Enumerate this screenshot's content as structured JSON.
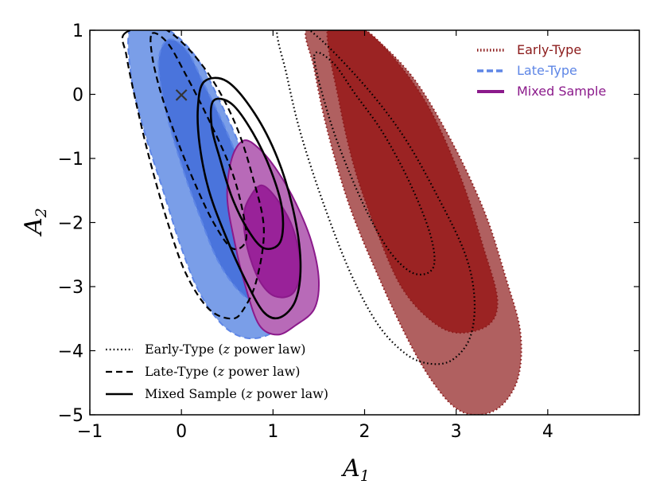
{
  "chart_data": {
    "type": "contour",
    "title": "",
    "xlabel": "A",
    "xlabel_sub": "1",
    "ylabel": "A",
    "ylabel_sub": "2",
    "xlim": [
      -1,
      5
    ],
    "ylim": [
      -5,
      1
    ],
    "xticks": [
      -1,
      0,
      1,
      2,
      3,
      4
    ],
    "yticks": [
      1,
      0,
      -1,
      -2,
      -3,
      -4,
      -5
    ],
    "xtick_labels": [
      "−1",
      "0",
      "1",
      "2",
      "3",
      "4"
    ],
    "ytick_labels": [
      "1",
      "0",
      "−1",
      "−2",
      "−3",
      "−4",
      "−5"
    ],
    "marker": {
      "symbol": "×",
      "x": 0,
      "y": 0
    },
    "filled_series": [
      {
        "name": "Early-Type",
        "color": "#b06060",
        "inner_color": "#9b2323",
        "edge_color": "#8b1a1a",
        "linestyle": "dotted",
        "contours": [
          {
            "level": "outer",
            "points": [
              [
                1.38,
                1.05
              ],
              [
                1.9,
                1.05
              ],
              [
                2.45,
                0.4
              ],
              [
                2.9,
                -0.6
              ],
              [
                3.3,
                -1.8
              ],
              [
                3.55,
                -2.9
              ],
              [
                3.7,
                -3.7
              ],
              [
                3.68,
                -4.4
              ],
              [
                3.5,
                -4.85
              ],
              [
                3.25,
                -5.0
              ],
              [
                3.0,
                -4.9
              ],
              [
                2.75,
                -4.5
              ],
              [
                2.5,
                -3.9
              ],
              [
                2.2,
                -3.0
              ],
              [
                1.85,
                -1.8
              ],
              [
                1.6,
                -0.6
              ],
              [
                1.45,
                0.4
              ]
            ]
          },
          {
            "level": "inner",
            "points": [
              [
                1.6,
                1.05
              ],
              [
                1.95,
                1.05
              ],
              [
                2.3,
                0.6
              ],
              [
                2.7,
                -0.2
              ],
              [
                3.05,
                -1.3
              ],
              [
                3.3,
                -2.4
              ],
              [
                3.45,
                -3.2
              ],
              [
                3.35,
                -3.6
              ],
              [
                3.0,
                -3.72
              ],
              [
                2.7,
                -3.5
              ],
              [
                2.4,
                -3.0
              ],
              [
                2.15,
                -2.2
              ],
              [
                1.9,
                -1.2
              ],
              [
                1.72,
                -0.1
              ]
            ]
          }
        ]
      },
      {
        "name": "Late-Type",
        "color": "#7a9ee8",
        "inner_color": "#4a74dc",
        "edge_color": "#5e86e6",
        "linestyle": "dashed",
        "contours": [
          {
            "level": "outer",
            "points": [
              [
                -0.55,
                1.05
              ],
              [
                -0.2,
                1.05
              ],
              [
                0.15,
                0.6
              ],
              [
                0.45,
                -0.2
              ],
              [
                0.75,
                -1.2
              ],
              [
                1.0,
                -2.2
              ],
              [
                1.18,
                -3.0
              ],
              [
                1.15,
                -3.5
              ],
              [
                0.95,
                -3.75
              ],
              [
                0.7,
                -3.8
              ],
              [
                0.45,
                -3.6
              ],
              [
                0.2,
                -3.1
              ],
              [
                0.0,
                -2.4
              ],
              [
                -0.2,
                -1.5
              ],
              [
                -0.4,
                -0.6
              ],
              [
                -0.55,
                0.3
              ]
            ]
          },
          {
            "level": "inner",
            "points": [
              [
                -0.15,
                0.85
              ],
              [
                0.05,
                0.7
              ],
              [
                0.25,
                0.15
              ],
              [
                0.5,
                -0.6
              ],
              [
                0.75,
                -1.5
              ],
              [
                0.95,
                -2.4
              ],
              [
                1.1,
                -3.1
              ],
              [
                0.9,
                -3.3
              ],
              [
                0.65,
                -3.1
              ],
              [
                0.4,
                -2.6
              ],
              [
                0.2,
                -1.9
              ],
              [
                0.0,
                -1.1
              ],
              [
                -0.18,
                -0.2
              ],
              [
                -0.25,
                0.5
              ]
            ]
          }
        ]
      },
      {
        "name": "Mixed Sample",
        "color": "#b86ab8",
        "inner_color": "#992299",
        "edge_color": "#8b1a8b",
        "linestyle": "solid",
        "contours": [
          {
            "level": "outer",
            "points": [
              [
                0.68,
                -0.72
              ],
              [
                0.85,
                -0.85
              ],
              [
                1.05,
                -1.2
              ],
              [
                1.25,
                -1.7
              ],
              [
                1.42,
                -2.3
              ],
              [
                1.5,
                -2.9
              ],
              [
                1.45,
                -3.35
              ],
              [
                1.25,
                -3.6
              ],
              [
                1.05,
                -3.75
              ],
              [
                0.85,
                -3.6
              ],
              [
                0.7,
                -3.0
              ],
              [
                0.58,
                -2.3
              ],
              [
                0.5,
                -1.6
              ],
              [
                0.55,
                -1.0
              ]
            ]
          },
          {
            "level": "inner",
            "points": [
              [
                0.88,
                -1.42
              ],
              [
                1.05,
                -1.65
              ],
              [
                1.22,
                -2.1
              ],
              [
                1.3,
                -2.7
              ],
              [
                1.22,
                -3.1
              ],
              [
                1.02,
                -3.15
              ],
              [
                0.85,
                -2.9
              ],
              [
                0.72,
                -2.4
              ],
              [
                0.68,
                -1.9
              ],
              [
                0.75,
                -1.6
              ]
            ]
          }
        ]
      }
    ],
    "line_series": [
      {
        "name": "Early-Type (z power law)",
        "linestyle": "dotted",
        "contours": [
          {
            "level": "outer",
            "points": [
              [
                1.05,
                1.05
              ],
              [
                1.35,
                1.05
              ],
              [
                1.9,
                0.3
              ],
              [
                2.4,
                -0.6
              ],
              [
                2.8,
                -1.6
              ],
              [
                3.1,
                -2.5
              ],
              [
                3.2,
                -3.2
              ],
              [
                3.15,
                -3.8
              ],
              [
                2.95,
                -4.15
              ],
              [
                2.7,
                -4.2
              ],
              [
                2.45,
                -4.05
              ],
              [
                2.15,
                -3.6
              ],
              [
                1.85,
                -2.8
              ],
              [
                1.55,
                -1.7
              ],
              [
                1.3,
                -0.6
              ],
              [
                1.15,
                0.3
              ]
            ]
          },
          {
            "level": "inner",
            "points": [
              [
                1.45,
                0.6
              ],
              [
                1.65,
                0.5
              ],
              [
                1.9,
                0.0
              ],
              [
                2.2,
                -0.6
              ],
              [
                2.5,
                -1.4
              ],
              [
                2.72,
                -2.2
              ],
              [
                2.75,
                -2.7
              ],
              [
                2.55,
                -2.8
              ],
              [
                2.3,
                -2.5
              ],
              [
                2.05,
                -1.9
              ],
              [
                1.8,
                -1.1
              ],
              [
                1.6,
                -0.3
              ]
            ]
          }
        ]
      },
      {
        "name": "Late-Type (z power law)",
        "linestyle": "dashed",
        "contours": [
          {
            "level": "outer",
            "points": [
              [
                -0.62,
                0.95
              ],
              [
                -0.25,
                1.05
              ],
              [
                0.05,
                0.75
              ],
              [
                0.35,
                0.2
              ],
              [
                0.6,
                -0.5
              ],
              [
                0.78,
                -1.3
              ],
              [
                0.9,
                -2.1
              ],
              [
                0.82,
                -2.9
              ],
              [
                0.68,
                -3.35
              ],
              [
                0.55,
                -3.5
              ],
              [
                0.3,
                -3.35
              ],
              [
                0.05,
                -2.8
              ],
              [
                -0.15,
                -2.0
              ],
              [
                -0.35,
                -1.0
              ],
              [
                -0.5,
                -0.1
              ],
              [
                -0.6,
                0.6
              ]
            ]
          },
          {
            "level": "inner",
            "points": [
              [
                -0.32,
                0.95
              ],
              [
                -0.15,
                0.8
              ],
              [
                0.05,
                0.3
              ],
              [
                0.3,
                -0.4
              ],
              [
                0.55,
                -1.2
              ],
              [
                0.68,
                -1.9
              ],
              [
                0.7,
                -2.3
              ],
              [
                0.55,
                -2.4
              ],
              [
                0.35,
                -2.0
              ],
              [
                0.15,
                -1.4
              ],
              [
                -0.05,
                -0.7
              ],
              [
                -0.22,
                0.0
              ],
              [
                -0.32,
                0.6
              ]
            ]
          }
        ]
      },
      {
        "name": "Mixed Sample (z power law)",
        "linestyle": "solid",
        "contours": [
          {
            "level": "outer",
            "points": [
              [
                0.25,
                0.2
              ],
              [
                0.5,
                0.2
              ],
              [
                0.8,
                -0.3
              ],
              [
                1.05,
                -1.0
              ],
              [
                1.22,
                -1.8
              ],
              [
                1.3,
                -2.6
              ],
              [
                1.25,
                -3.2
              ],
              [
                1.08,
                -3.48
              ],
              [
                0.9,
                -3.4
              ],
              [
                0.7,
                -2.9
              ],
              [
                0.48,
                -2.2
              ],
              [
                0.3,
                -1.5
              ],
              [
                0.2,
                -0.8
              ],
              [
                0.18,
                -0.2
              ]
            ]
          },
          {
            "level": "inner",
            "points": [
              [
                0.35,
                -0.1
              ],
              [
                0.55,
                -0.15
              ],
              [
                0.78,
                -0.6
              ],
              [
                0.98,
                -1.2
              ],
              [
                1.1,
                -1.8
              ],
              [
                1.08,
                -2.3
              ],
              [
                0.9,
                -2.4
              ],
              [
                0.72,
                -2.1
              ],
              [
                0.55,
                -1.6
              ],
              [
                0.42,
                -1.0
              ],
              [
                0.33,
                -0.5
              ]
            ]
          }
        ]
      }
    ],
    "legend_top_right": [
      {
        "label": "Early-Type",
        "color": "#8b1a1a",
        "style": "dotted"
      },
      {
        "label": "Late-Type",
        "color": "#5e86e6",
        "style": "dashed"
      },
      {
        "label": "Mixed Sample",
        "color": "#8b1a8b",
        "style": "solid"
      }
    ],
    "legend_bottom_left": [
      {
        "label": "Early-Type (",
        "math": "z",
        "suffix": " power law)",
        "style": "dotted"
      },
      {
        "label": "Late-Type (",
        "math": "z",
        "suffix": " power law)",
        "style": "dashed"
      },
      {
        "label": "Mixed Sample (",
        "math": "z",
        "suffix": " power law)",
        "style": "solid"
      }
    ]
  }
}
